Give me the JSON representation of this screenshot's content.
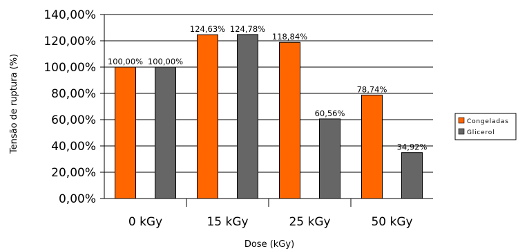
{
  "chart_data": {
    "type": "bar",
    "title": "",
    "xlabel": "Dose (kGy)",
    "ylabel": "Tensão de ruptura (%)",
    "categories": [
      "0 kGy",
      "15 kGy",
      "25 kGy",
      "50 kGy"
    ],
    "ylim": [
      0,
      140
    ],
    "ytick_values": [
      0,
      20,
      40,
      60,
      80,
      100,
      120,
      140
    ],
    "ytick_labels": [
      "0,00%",
      "20,00%",
      "40,00%",
      "60,00%",
      "80,00%",
      "100,00%",
      "120,00%",
      "140,00%"
    ],
    "grid": true,
    "legend_position": "right",
    "series": [
      {
        "name": "Congeladas",
        "color": "#ff6600",
        "values": [
          100.0,
          124.63,
          118.84,
          78.74
        ],
        "labels": [
          "100,00%",
          "124,63%",
          "118,84%",
          "78,74%"
        ]
      },
      {
        "name": "Glicerol",
        "color": "#666666",
        "values": [
          100.0,
          124.78,
          60.56,
          34.92
        ],
        "labels": [
          "100,00%",
          "124,78%",
          "60,56%",
          "34,92%"
        ]
      }
    ]
  }
}
